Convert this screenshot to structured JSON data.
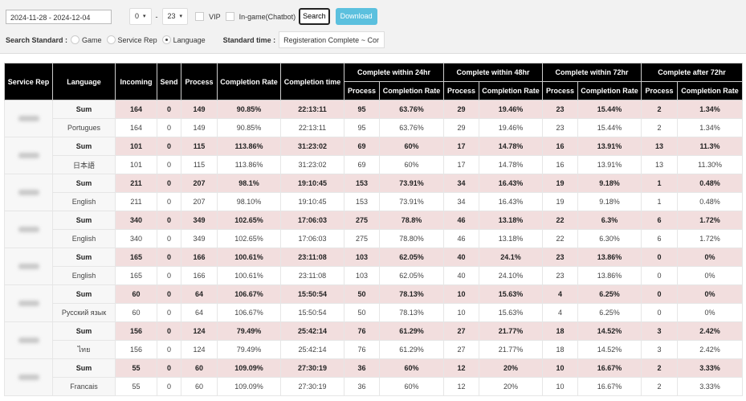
{
  "filters": {
    "date_range": "2024-11-28 - 2024-12-04",
    "hour_from": "0",
    "hour_to": "23",
    "dash": "-",
    "vip_label": "VIP",
    "ingame_label": "In-game(Chatbot)",
    "search_label": "Search",
    "download_label": "Download",
    "search_standard_label": "Search Standard :",
    "standard_options": [
      "Game",
      "Service Rep",
      "Language"
    ],
    "standard_selected": "Language",
    "standard_time_label": "Standard time :",
    "standard_time_value": "Registeration Complete ~ Cor"
  },
  "colors": {
    "sum_row": "#f2dede",
    "header": "#000000",
    "download": "#5bc0de"
  },
  "table": {
    "headers": [
      "Service Rep",
      "Language",
      "Incoming",
      "Send",
      "Process",
      "Completion Rate",
      "Completion time"
    ],
    "groups": [
      "Complete within 24hr",
      "Complete within 48hr",
      "Complete within 72hr",
      "Complete after 72hr"
    ],
    "sub_headers": [
      "Process",
      "Completion Rate"
    ],
    "rows": [
      [
        "Sum",
        "164",
        "0",
        "149",
        "90.85%",
        "22:13:11",
        "95",
        "63.76%",
        "29",
        "19.46%",
        "23",
        "15.44%",
        "2",
        "1.34%"
      ],
      [
        "Portugues",
        "164",
        "0",
        "149",
        "90.85%",
        "22:13:11",
        "95",
        "63.76%",
        "29",
        "19.46%",
        "23",
        "15.44%",
        "2",
        "1.34%"
      ],
      [
        "Sum",
        "101",
        "0",
        "115",
        "113.86%",
        "31:23:02",
        "69",
        "60%",
        "17",
        "14.78%",
        "16",
        "13.91%",
        "13",
        "11.3%"
      ],
      [
        "日本語",
        "101",
        "0",
        "115",
        "113.86%",
        "31:23:02",
        "69",
        "60%",
        "17",
        "14.78%",
        "16",
        "13.91%",
        "13",
        "11.30%"
      ],
      [
        "Sum",
        "211",
        "0",
        "207",
        "98.1%",
        "19:10:45",
        "153",
        "73.91%",
        "34",
        "16.43%",
        "19",
        "9.18%",
        "1",
        "0.48%"
      ],
      [
        "English",
        "211",
        "0",
        "207",
        "98.10%",
        "19:10:45",
        "153",
        "73.91%",
        "34",
        "16.43%",
        "19",
        "9.18%",
        "1",
        "0.48%"
      ],
      [
        "Sum",
        "340",
        "0",
        "349",
        "102.65%",
        "17:06:03",
        "275",
        "78.8%",
        "46",
        "13.18%",
        "22",
        "6.3%",
        "6",
        "1.72%"
      ],
      [
        "English",
        "340",
        "0",
        "349",
        "102.65%",
        "17:06:03",
        "275",
        "78.80%",
        "46",
        "13.18%",
        "22",
        "6.30%",
        "6",
        "1.72%"
      ],
      [
        "Sum",
        "165",
        "0",
        "166",
        "100.61%",
        "23:11:08",
        "103",
        "62.05%",
        "40",
        "24.1%",
        "23",
        "13.86%",
        "0",
        "0%"
      ],
      [
        "English",
        "165",
        "0",
        "166",
        "100.61%",
        "23:11:08",
        "103",
        "62.05%",
        "40",
        "24.10%",
        "23",
        "13.86%",
        "0",
        "0%"
      ],
      [
        "Sum",
        "60",
        "0",
        "64",
        "106.67%",
        "15:50:54",
        "50",
        "78.13%",
        "10",
        "15.63%",
        "4",
        "6.25%",
        "0",
        "0%"
      ],
      [
        "Русский язык",
        "60",
        "0",
        "64",
        "106.67%",
        "15:50:54",
        "50",
        "78.13%",
        "10",
        "15.63%",
        "4",
        "6.25%",
        "0",
        "0%"
      ],
      [
        "Sum",
        "156",
        "0",
        "124",
        "79.49%",
        "25:42:14",
        "76",
        "61.29%",
        "27",
        "21.77%",
        "18",
        "14.52%",
        "3",
        "2.42%"
      ],
      [
        "ไทย",
        "156",
        "0",
        "124",
        "79.49%",
        "25:42:14",
        "76",
        "61.29%",
        "27",
        "21.77%",
        "18",
        "14.52%",
        "3",
        "2.42%"
      ],
      [
        "Sum",
        "55",
        "0",
        "60",
        "109.09%",
        "27:30:19",
        "36",
        "60%",
        "12",
        "20%",
        "10",
        "16.67%",
        "2",
        "3.33%"
      ],
      [
        "Francais",
        "55",
        "0",
        "60",
        "109.09%",
        "27:30:19",
        "36",
        "60%",
        "12",
        "20%",
        "10",
        "16.67%",
        "2",
        "3.33%"
      ]
    ]
  }
}
